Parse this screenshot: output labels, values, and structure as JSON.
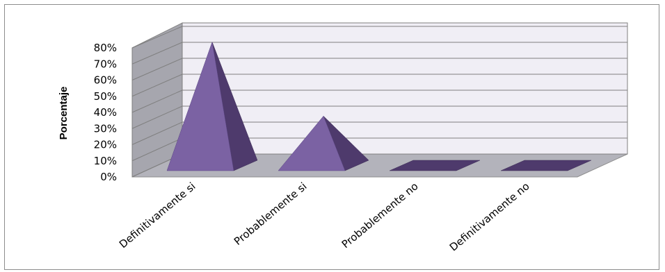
{
  "chart_data": {
    "type": "bar",
    "style": "3d-pyramid",
    "categories": [
      "Definitivamente si",
      "Probablemente si",
      "Probablemente no",
      "Definitivamente no"
    ],
    "values": [
      0.8,
      0.32,
      0.0,
      0.0
    ],
    "ylabel": "Porcentaje",
    "ylim": [
      0,
      0.8
    ],
    "yticks": [
      "0%",
      "10%",
      "20%",
      "30%",
      "40%",
      "50%",
      "60%",
      "70%",
      "80%"
    ],
    "grid": true,
    "legend": "none",
    "colors": {
      "pyramid_front": "#7b62a3",
      "pyramid_side": "#4e3a6c",
      "back_wall": "#f0eef5",
      "side_wall": "#a6a6ae",
      "floor": "#b3b3bb",
      "gridline": "#7f7f7f"
    }
  }
}
